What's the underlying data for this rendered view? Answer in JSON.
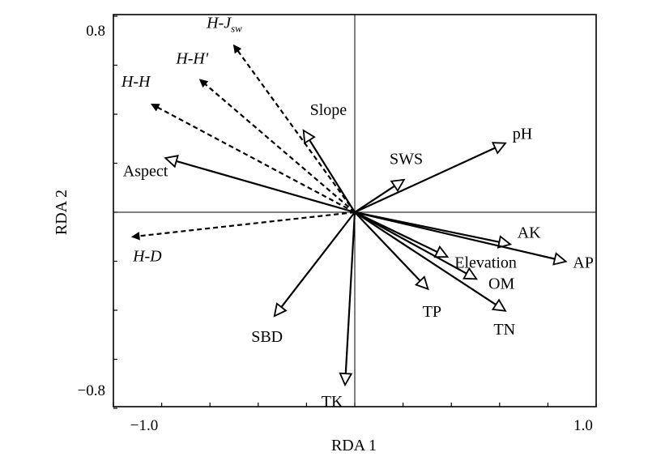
{
  "chart_data": {
    "type": "biplot",
    "xlabel": "RDA 1",
    "ylabel": "RDA 2",
    "xlim": [
      -1.0,
      1.0
    ],
    "ylim": [
      -0.8,
      0.8
    ],
    "x_ticks": [
      -1.0,
      1.0
    ],
    "y_ticks": [
      0.8,
      -0.8
    ],
    "x_tick_labels": [
      "−1.0",
      "1.0"
    ],
    "y_tick_labels": [
      "0.8",
      "−0.8"
    ],
    "grid": false,
    "reference_lines": [
      {
        "axis": "x",
        "value": 0
      },
      {
        "axis": "y",
        "value": 0
      }
    ],
    "response_vectors": [
      {
        "label": "H-J",
        "subscript": "sw",
        "x": -0.5,
        "y": 0.68
      },
      {
        "label": "H-H′",
        "x": -0.64,
        "y": 0.54
      },
      {
        "label": "H-H",
        "x": -0.84,
        "y": 0.44
      },
      {
        "label": "H-D",
        "x": -0.92,
        "y": -0.1
      }
    ],
    "explanatory_vectors": [
      {
        "label": "Slope",
        "x": -0.21,
        "y": 0.33
      },
      {
        "label": "Aspect",
        "x": -0.78,
        "y": 0.22
      },
      {
        "label": "pH",
        "x": 0.62,
        "y": 0.28
      },
      {
        "label": "SWS",
        "x": 0.2,
        "y": 0.13
      },
      {
        "label": "AK",
        "x": 0.64,
        "y": -0.13
      },
      {
        "label": "AP",
        "x": 0.87,
        "y": -0.2
      },
      {
        "label": "Elevation",
        "x": 0.38,
        "y": -0.18
      },
      {
        "label": "OM",
        "x": 0.5,
        "y": -0.27
      },
      {
        "label": "TN",
        "x": 0.62,
        "y": -0.4
      },
      {
        "label": "TP",
        "x": 0.3,
        "y": -0.31
      },
      {
        "label": "SBD",
        "x": -0.33,
        "y": -0.42
      },
      {
        "label": "TK",
        "x": -0.04,
        "y": -0.7
      }
    ]
  }
}
